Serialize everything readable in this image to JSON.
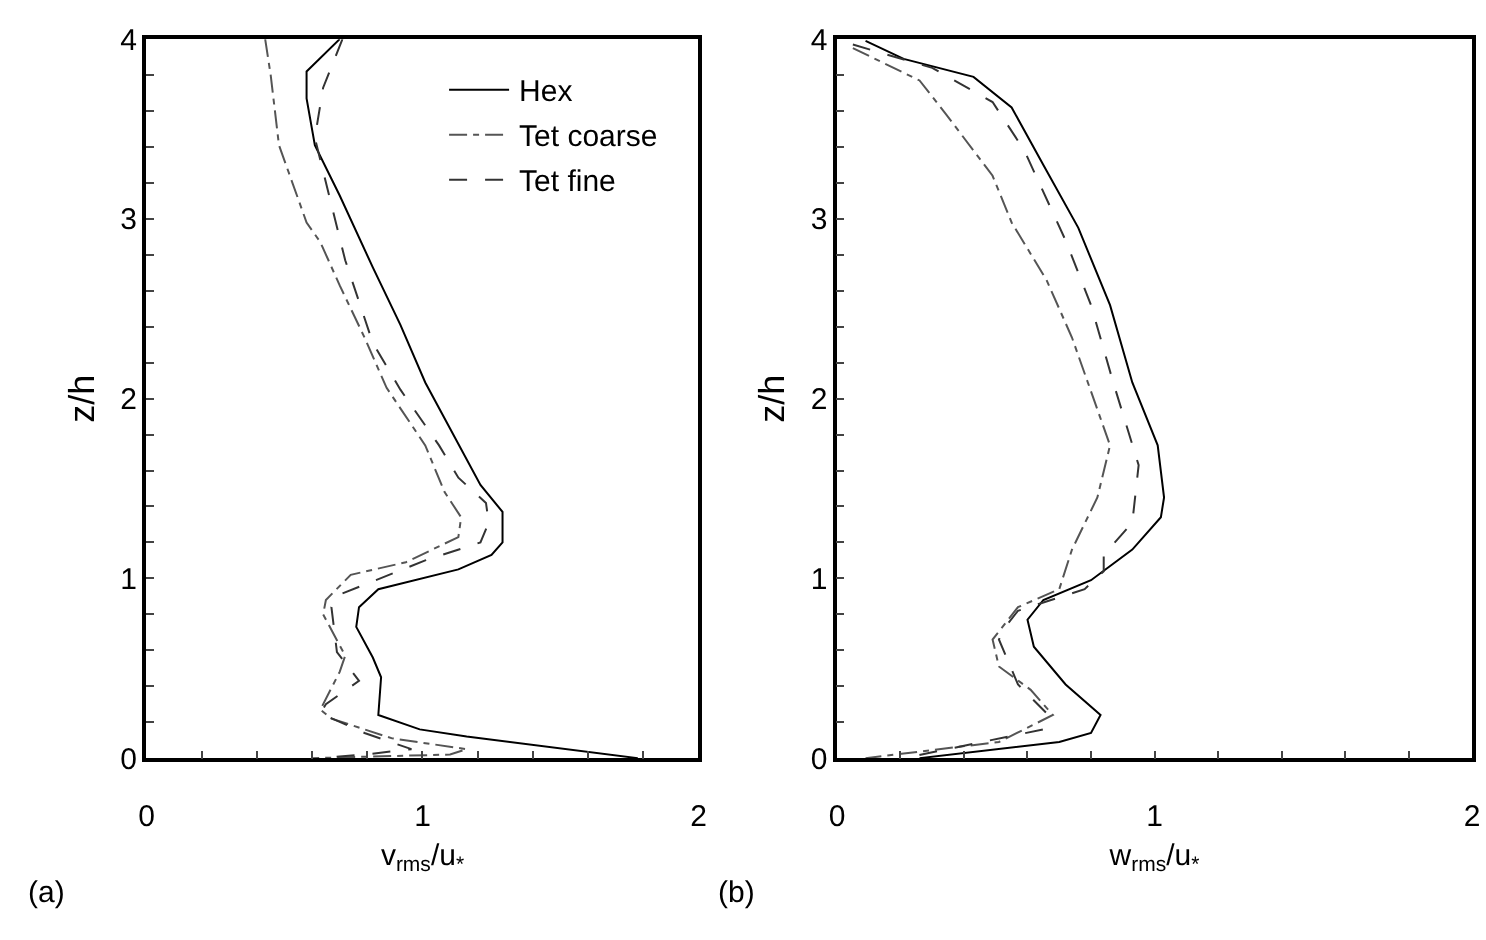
{
  "chart_data": [
    {
      "type": "line",
      "xlabel": "v$_{rms}$/u$_{*}$",
      "ylabel": "z/h",
      "annotations": [
        "(a)"
      ],
      "legend": "top right",
      "xlim": [
        0,
        2
      ],
      "ylim": [
        0,
        4
      ],
      "xticks": [
        0,
        {
          "value": 0.2,
          "label": null
        },
        {
          "value": 0.4,
          "label": null
        },
        {
          "value": 0.6,
          "label": null
        },
        {
          "value": 0.8,
          "label": null
        },
        1,
        {
          "value": 1.2,
          "label": null
        },
        {
          "value": 1.4,
          "label": null
        },
        {
          "value": 1.6,
          "label": null
        },
        {
          "value": 1.8,
          "label": null
        },
        2
      ],
      "yticks": [
        0,
        {
          "value": 0.2,
          "label": null
        },
        {
          "value": 0.4,
          "label": null
        },
        {
          "value": 0.6,
          "label": null
        },
        {
          "value": 0.8,
          "label": null
        },
        1,
        {
          "value": 1.2,
          "label": null
        },
        {
          "value": 1.4,
          "label": null
        },
        {
          "value": 1.6,
          "label": null
        },
        {
          "value": 1.8,
          "label": null
        },
        2,
        {
          "value": 2.2,
          "label": null
        },
        {
          "value": 2.4,
          "label": null
        },
        {
          "value": 2.6,
          "label": null
        },
        {
          "value": 2.8,
          "label": null
        },
        3,
        {
          "value": 3.2,
          "label": null
        },
        {
          "value": 3.4,
          "label": null
        },
        {
          "value": 3.6,
          "label": null
        },
        {
          "value": 3.8,
          "label": null
        },
        4
      ],
      "series": [
        {
          "name": "Hex",
          "color": "#000000",
          "line_style": "solid",
          "x": [
            0.7,
            0.58,
            0.58,
            0.61,
            0.7,
            0.82,
            0.92,
            1.01,
            1.21,
            1.29,
            1.29,
            1.25,
            1.13,
            0.84,
            0.77,
            0.76,
            0.82,
            0.85,
            0.84,
            0.99,
            1.16,
            1.78
          ],
          "values": [
            4,
            3.82,
            3.67,
            3.41,
            3.13,
            2.73,
            2.41,
            2.09,
            1.52,
            1.37,
            1.2,
            1.13,
            1.05,
            0.94,
            0.84,
            0.73,
            0.56,
            0.45,
            0.24,
            0.16,
            0.12,
            0
          ]
        },
        {
          "name": "Tet coarse",
          "color": "#555555",
          "line_style": "dashdot",
          "x": [
            0.43,
            0.45,
            0.48,
            0.58,
            0.63,
            0.7,
            0.79,
            0.87,
            1.01,
            1.08,
            1.14,
            1.13,
            0.94,
            0.74,
            0.65,
            0.64,
            0.72,
            0.7,
            0.63,
            0.67,
            0.89,
            1.16,
            1.1,
            0.6
          ],
          "values": [
            4,
            3.8,
            3.41,
            2.98,
            2.87,
            2.63,
            2.34,
            2.06,
            1.74,
            1.48,
            1.34,
            1.23,
            1.09,
            1.02,
            0.88,
            0.8,
            0.57,
            0.48,
            0.27,
            0.22,
            0.11,
            0.05,
            0.02,
            0
          ]
        },
        {
          "name": "Tet fine",
          "color": "#333333",
          "line_style": "dashed",
          "x": [
            0.71,
            0.64,
            0.61,
            0.72,
            0.82,
            0.92,
            1.06,
            1.13,
            1.23,
            1.24,
            1.21,
            1.01,
            0.7,
            0.67,
            0.69,
            0.77,
            0.65,
            0.63,
            0.79,
            0.96,
            0.79,
            0.63
          ],
          "values": [
            4,
            3.73,
            3.45,
            2.77,
            2.31,
            2.05,
            1.74,
            1.56,
            1.42,
            1.31,
            1.2,
            1.1,
            0.91,
            0.84,
            0.59,
            0.43,
            0.3,
            0.25,
            0.14,
            0.05,
            0.02,
            0
          ]
        }
      ]
    },
    {
      "type": "line",
      "xlabel": "w$_{rms}$/u$_{*}$",
      "ylabel": "z/h",
      "annotations": [
        "(b)"
      ],
      "legend": false,
      "xlim": [
        0,
        2
      ],
      "ylim": [
        0,
        4
      ],
      "xticks": [
        0,
        {
          "value": 0.2,
          "label": null
        },
        {
          "value": 0.4,
          "label": null
        },
        {
          "value": 0.6,
          "label": null
        },
        {
          "value": 0.8,
          "label": null
        },
        1,
        {
          "value": 1.2,
          "label": null
        },
        {
          "value": 1.4,
          "label": null
        },
        {
          "value": 1.6,
          "label": null
        },
        {
          "value": 1.8,
          "label": null
        },
        2
      ],
      "yticks": [
        0,
        {
          "value": 0.2,
          "label": null
        },
        {
          "value": 0.4,
          "label": null
        },
        {
          "value": 0.6,
          "label": null
        },
        {
          "value": 0.8,
          "label": null
        },
        1,
        {
          "value": 1.2,
          "label": null
        },
        {
          "value": 1.4,
          "label": null
        },
        {
          "value": 1.6,
          "label": null
        },
        {
          "value": 1.8,
          "label": null
        },
        2,
        {
          "value": 2.2,
          "label": null
        },
        {
          "value": 2.4,
          "label": null
        },
        {
          "value": 2.6,
          "label": null
        },
        {
          "value": 2.8,
          "label": null
        },
        3,
        {
          "value": 3.2,
          "label": null
        },
        {
          "value": 3.4,
          "label": null
        },
        {
          "value": 3.6,
          "label": null
        },
        {
          "value": 3.8,
          "label": null
        },
        4
      ],
      "series": [
        {
          "color": "#000000",
          "line_style": "solid",
          "x": [
            0.09,
            0.21,
            0.43,
            0.55,
            0.65,
            0.76,
            0.86,
            0.93,
            1.01,
            1.03,
            1.02,
            0.93,
            0.8,
            0.65,
            0.6,
            0.62,
            0.72,
            0.83,
            0.8,
            0.7,
            0.26
          ],
          "values": [
            3.99,
            3.89,
            3.79,
            3.62,
            3.3,
            2.95,
            2.52,
            2.09,
            1.74,
            1.45,
            1.34,
            1.16,
            0.99,
            0.88,
            0.77,
            0.62,
            0.41,
            0.24,
            0.14,
            0.09,
            0
          ]
        },
        {
          "color": "#555555",
          "line_style": "dashdot",
          "x": [
            0.05,
            0.26,
            0.34,
            0.49,
            0.55,
            0.66,
            0.74,
            0.79,
            0.86,
            0.82,
            0.74,
            0.7,
            0.57,
            0.49,
            0.51,
            0.61,
            0.68,
            0.51,
            0.09
          ],
          "values": [
            3.95,
            3.77,
            3.59,
            3.24,
            2.98,
            2.66,
            2.34,
            2.09,
            1.74,
            1.45,
            1.16,
            0.94,
            0.84,
            0.66,
            0.51,
            0.38,
            0.24,
            0.09,
            0
          ]
        },
        {
          "color": "#333333",
          "line_style": "dashed",
          "x": [
            0.05,
            0.3,
            0.49,
            0.59,
            0.72,
            0.8,
            0.87,
            0.95,
            0.93,
            0.84,
            0.84,
            0.78,
            0.57,
            0.53,
            0.51,
            0.57,
            0.66,
            0.65,
            0.21
          ],
          "values": [
            3.97,
            3.84,
            3.65,
            3.38,
            2.88,
            2.52,
            2.09,
            1.63,
            1.31,
            1.13,
            1.04,
            0.94,
            0.82,
            0.73,
            0.66,
            0.41,
            0.25,
            0.16,
            0
          ]
        }
      ]
    }
  ]
}
